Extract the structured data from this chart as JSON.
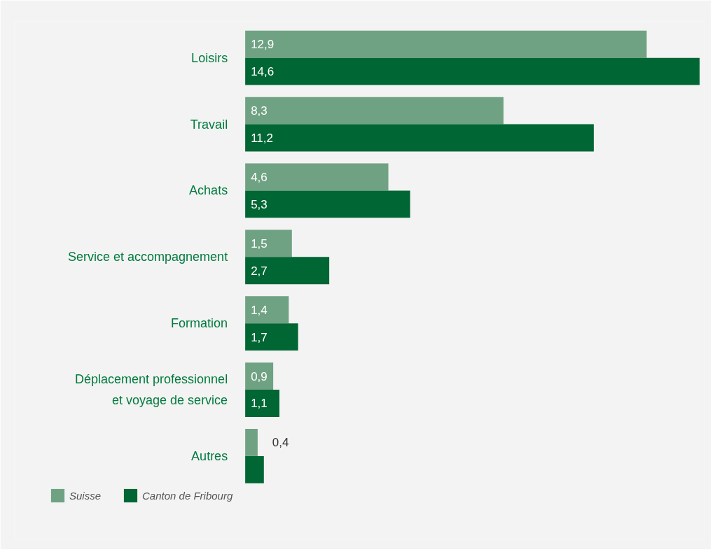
{
  "chart_data": {
    "type": "bar",
    "orientation": "horizontal",
    "categories": [
      "Loisirs",
      "Travail",
      "Achats",
      "Service et accompagnement",
      "Formation",
      "Déplacement professionnel et voyage de service",
      "Autres"
    ],
    "series": [
      {
        "name": "Suisse",
        "color": "#6fa283",
        "values": [
          12.9,
          8.3,
          4.6,
          1.5,
          1.4,
          0.9,
          0.4
        ],
        "value_labels": [
          "12,9",
          "8,3",
          "4,6",
          "1,5",
          "1,4",
          "0,9",
          "0,4"
        ]
      },
      {
        "name": "Canton de Fribourg",
        "color": "#006633",
        "values": [
          14.6,
          11.2,
          5.3,
          2.7,
          1.7,
          1.1,
          0.6
        ],
        "value_labels": [
          "14,6",
          "11,2",
          "5,3",
          "2,7",
          "1,7",
          "1,1",
          null
        ]
      }
    ],
    "legend": "bottom left",
    "grid": false
  }
}
